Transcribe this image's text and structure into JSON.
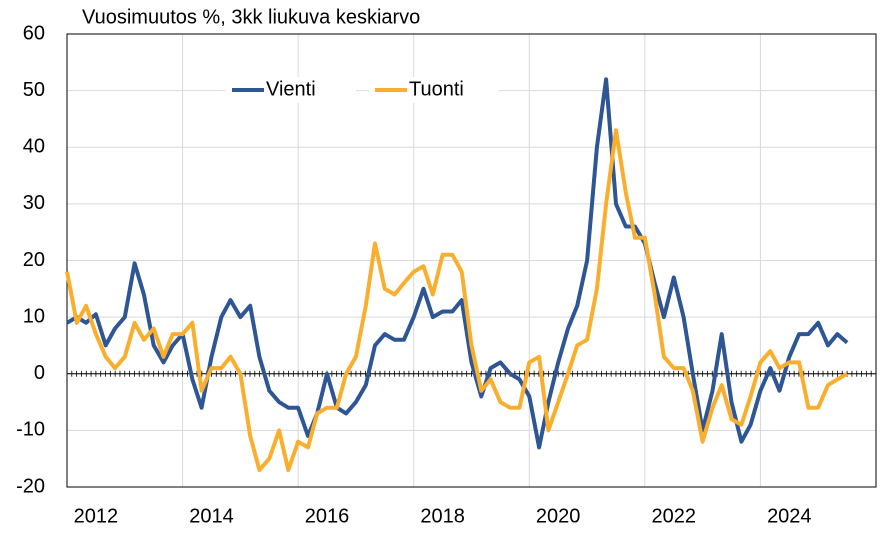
{
  "chart_data": {
    "type": "line",
    "title": "Vuosimuutos %, 3kk liukuva keskiarvo",
    "xlim": [
      2012,
      2026
    ],
    "ylim": [
      -20,
      60
    ],
    "yticks": [
      -20,
      -10,
      0,
      10,
      20,
      30,
      40,
      50,
      60
    ],
    "xticks": [
      {
        "value": 2012.5,
        "label": "2012"
      },
      {
        "value": 2014.5,
        "label": "2014"
      },
      {
        "value": 2016.5,
        "label": "2016"
      },
      {
        "value": 2018.5,
        "label": "2018"
      },
      {
        "value": 2020.5,
        "label": "2020"
      },
      {
        "value": 2022.5,
        "label": "2022"
      },
      {
        "value": 2024.5,
        "label": "2024"
      }
    ],
    "grid": true,
    "legend": "top",
    "x": [
      2012,
      2012.17,
      2012.33,
      2012.5,
      2012.67,
      2012.83,
      2013,
      2013.17,
      2013.33,
      2013.5,
      2013.67,
      2013.83,
      2014,
      2014.17,
      2014.33,
      2014.5,
      2014.67,
      2014.83,
      2015,
      2015.17,
      2015.33,
      2015.5,
      2015.67,
      2015.83,
      2016,
      2016.17,
      2016.33,
      2016.5,
      2016.67,
      2016.83,
      2017,
      2017.17,
      2017.33,
      2017.5,
      2017.67,
      2017.83,
      2018,
      2018.17,
      2018.33,
      2018.5,
      2018.67,
      2018.83,
      2019,
      2019.17,
      2019.33,
      2019.5,
      2019.67,
      2019.83,
      2020,
      2020.17,
      2020.33,
      2020.5,
      2020.67,
      2020.83,
      2021,
      2021.17,
      2021.33,
      2021.5,
      2021.67,
      2021.83,
      2022,
      2022.17,
      2022.33,
      2022.5,
      2022.67,
      2022.83,
      2023,
      2023.17,
      2023.33,
      2023.5,
      2023.67,
      2023.83,
      2024,
      2024.17,
      2024.33,
      2024.5,
      2024.67,
      2024.83,
      2025,
      2025.17,
      2025.33,
      2025.5
    ],
    "series": [
      {
        "name": "Vienti",
        "color": "#2e5594",
        "values": [
          9,
          10,
          9,
          10.5,
          5,
          8,
          10,
          19.5,
          14,
          5,
          2,
          5,
          7,
          -1,
          -6,
          3,
          10,
          13,
          10,
          12,
          3,
          -3,
          -5,
          -6,
          -6,
          -11,
          -7,
          0,
          -6,
          -7,
          -5,
          -2,
          5,
          7,
          6,
          6,
          10,
          15,
          10,
          11,
          11,
          13,
          2,
          -4,
          1,
          2,
          0,
          -1,
          -4,
          -13,
          -5,
          2,
          8,
          12,
          20,
          40,
          52,
          30,
          26,
          26,
          23,
          16,
          10,
          17,
          10,
          0,
          -10,
          -3,
          7,
          -5,
          -12,
          -9,
          -3,
          1,
          -3,
          3,
          7,
          7,
          9,
          5,
          7,
          5.5
        ]
      },
      {
        "name": "Tuonti",
        "color": "#f9ae2e",
        "values": [
          18,
          9,
          12,
          7,
          3,
          1,
          3,
          9,
          6,
          8,
          3,
          7,
          7,
          9,
          -3,
          1,
          1,
          3,
          0,
          -11,
          -17,
          -15,
          -10,
          -17,
          -12,
          -13,
          -7,
          -6,
          -6,
          0,
          3,
          12,
          23,
          15,
          14,
          16,
          18,
          19,
          14,
          21,
          21,
          18,
          5,
          -3,
          -1,
          -5,
          -6,
          -6,
          2,
          3,
          -10,
          -5,
          0,
          5,
          6,
          15,
          30,
          43,
          32,
          24,
          24,
          14,
          3,
          1,
          1,
          -3,
          -12,
          -6,
          -2,
          -8,
          -9,
          -4,
          2,
          4,
          1,
          2,
          2,
          -6,
          -6,
          -2,
          -1,
          0
        ]
      }
    ]
  }
}
